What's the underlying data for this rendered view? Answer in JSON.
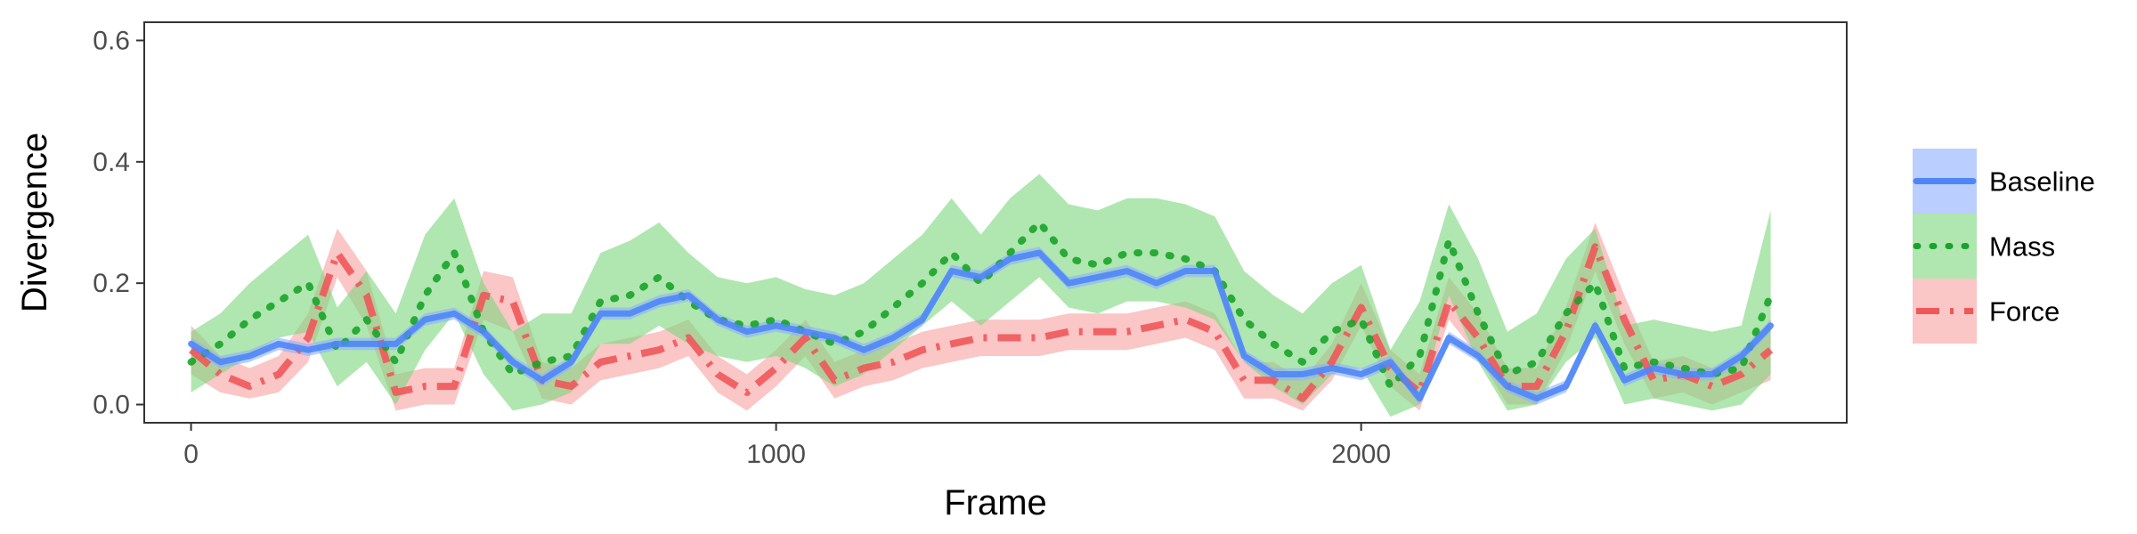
{
  "chart_data": {
    "type": "line",
    "xlabel": "Frame",
    "ylabel": "Divergence",
    "xlim": [
      -80,
      2830
    ],
    "ylim": [
      -0.03,
      0.63
    ],
    "xticks": [
      0,
      1000,
      2000
    ],
    "xtick_labels": [
      "0",
      "1000",
      "2000"
    ],
    "yticks": [
      0.0,
      0.2,
      0.4,
      0.6
    ],
    "ytick_labels": [
      "0.0",
      "0.2",
      "0.4",
      "0.6"
    ],
    "grid": false,
    "legend": "right",
    "series": [
      {
        "name": "Baseline",
        "color": "#4f86f7",
        "band_color": "#8fb0ff",
        "line_style": "solid",
        "x": [
          0,
          50,
          100,
          150,
          200,
          250,
          300,
          350,
          400,
          450,
          500,
          550,
          600,
          650,
          700,
          750,
          800,
          850,
          900,
          950,
          1000,
          1050,
          1100,
          1150,
          1200,
          1250,
          1300,
          1350,
          1400,
          1450,
          1500,
          1550,
          1600,
          1650,
          1700,
          1750,
          1800,
          1850,
          1900,
          1950,
          2000,
          2050,
          2100,
          2150,
          2200,
          2250,
          2300,
          2350,
          2400,
          2450,
          2500,
          2550,
          2600,
          2650,
          2700
        ],
        "values": [
          0.1,
          0.07,
          0.08,
          0.1,
          0.09,
          0.1,
          0.1,
          0.1,
          0.14,
          0.15,
          0.12,
          0.07,
          0.04,
          0.07,
          0.15,
          0.15,
          0.17,
          0.18,
          0.14,
          0.12,
          0.13,
          0.12,
          0.11,
          0.09,
          0.11,
          0.14,
          0.22,
          0.21,
          0.24,
          0.25,
          0.2,
          0.21,
          0.22,
          0.2,
          0.22,
          0.22,
          0.08,
          0.05,
          0.05,
          0.06,
          0.05,
          0.07,
          0.01,
          0.11,
          0.08,
          0.03,
          0.01,
          0.03,
          0.13,
          0.04,
          0.06,
          0.05,
          0.05,
          0.08,
          0.13
        ],
        "lower": [
          0.09,
          0.06,
          0.07,
          0.09,
          0.08,
          0.09,
          0.09,
          0.09,
          0.13,
          0.14,
          0.11,
          0.06,
          0.03,
          0.06,
          0.14,
          0.14,
          0.16,
          0.17,
          0.13,
          0.11,
          0.12,
          0.11,
          0.1,
          0.08,
          0.1,
          0.13,
          0.21,
          0.2,
          0.23,
          0.24,
          0.19,
          0.2,
          0.21,
          0.19,
          0.21,
          0.21,
          0.07,
          0.04,
          0.04,
          0.05,
          0.04,
          0.06,
          0.0,
          0.1,
          0.07,
          0.02,
          0.0,
          0.02,
          0.12,
          0.03,
          0.05,
          0.04,
          0.04,
          0.07,
          0.12
        ],
        "upper": [
          0.11,
          0.08,
          0.09,
          0.11,
          0.1,
          0.11,
          0.11,
          0.11,
          0.15,
          0.16,
          0.13,
          0.08,
          0.05,
          0.08,
          0.16,
          0.16,
          0.18,
          0.19,
          0.15,
          0.13,
          0.14,
          0.13,
          0.12,
          0.1,
          0.12,
          0.15,
          0.23,
          0.22,
          0.25,
          0.26,
          0.21,
          0.22,
          0.23,
          0.21,
          0.23,
          0.23,
          0.09,
          0.06,
          0.06,
          0.07,
          0.06,
          0.08,
          0.02,
          0.12,
          0.09,
          0.04,
          0.02,
          0.04,
          0.14,
          0.05,
          0.07,
          0.06,
          0.06,
          0.09,
          0.14
        ]
      },
      {
        "name": "Mass",
        "color": "#1aa32a",
        "band_color": "#7fd67f",
        "line_style": "dotted",
        "x": [
          0,
          50,
          100,
          150,
          200,
          250,
          300,
          350,
          400,
          450,
          500,
          550,
          600,
          650,
          700,
          750,
          800,
          850,
          900,
          950,
          1000,
          1050,
          1100,
          1150,
          1200,
          1250,
          1300,
          1350,
          1400,
          1450,
          1500,
          1550,
          1600,
          1650,
          1700,
          1750,
          1800,
          1850,
          1900,
          1950,
          2000,
          2050,
          2100,
          2150,
          2200,
          2250,
          2300,
          2350,
          2400,
          2450,
          2500,
          2550,
          2600,
          2650,
          2700
        ],
        "values": [
          0.07,
          0.1,
          0.14,
          0.17,
          0.2,
          0.09,
          0.14,
          0.07,
          0.18,
          0.25,
          0.12,
          0.05,
          0.07,
          0.08,
          0.17,
          0.18,
          0.21,
          0.17,
          0.14,
          0.13,
          0.14,
          0.12,
          0.1,
          0.12,
          0.16,
          0.2,
          0.25,
          0.2,
          0.25,
          0.3,
          0.24,
          0.23,
          0.25,
          0.25,
          0.24,
          0.22,
          0.14,
          0.1,
          0.07,
          0.12,
          0.14,
          0.03,
          0.08,
          0.27,
          0.15,
          0.05,
          0.07,
          0.15,
          0.2,
          0.06,
          0.07,
          0.06,
          0.05,
          0.06,
          0.18
        ],
        "lower": [
          0.02,
          0.05,
          0.08,
          0.11,
          0.12,
          0.03,
          0.07,
          0.0,
          0.09,
          0.15,
          0.05,
          -0.01,
          0.0,
          0.02,
          0.1,
          0.1,
          0.13,
          0.1,
          0.08,
          0.07,
          0.08,
          0.06,
          0.03,
          0.05,
          0.09,
          0.13,
          0.17,
          0.13,
          0.17,
          0.21,
          0.16,
          0.15,
          0.17,
          0.17,
          0.16,
          0.14,
          0.07,
          0.03,
          0.0,
          0.05,
          0.06,
          -0.02,
          0.0,
          0.18,
          0.07,
          -0.01,
          0.0,
          0.07,
          0.11,
          0.0,
          0.01,
          0.0,
          -0.01,
          0.0,
          0.05
        ],
        "upper": [
          0.12,
          0.15,
          0.2,
          0.24,
          0.28,
          0.16,
          0.22,
          0.15,
          0.28,
          0.34,
          0.2,
          0.12,
          0.15,
          0.15,
          0.25,
          0.27,
          0.3,
          0.25,
          0.21,
          0.2,
          0.21,
          0.19,
          0.18,
          0.2,
          0.24,
          0.28,
          0.34,
          0.28,
          0.34,
          0.38,
          0.33,
          0.32,
          0.34,
          0.34,
          0.33,
          0.31,
          0.22,
          0.18,
          0.15,
          0.2,
          0.23,
          0.09,
          0.17,
          0.33,
          0.24,
          0.12,
          0.15,
          0.24,
          0.29,
          0.13,
          0.14,
          0.13,
          0.12,
          0.13,
          0.32
        ]
      },
      {
        "name": "Force",
        "color": "#f0575a",
        "band_color": "#f7a3a3",
        "line_style": "dashdot",
        "x": [
          0,
          50,
          100,
          150,
          200,
          250,
          300,
          350,
          400,
          450,
          500,
          550,
          600,
          650,
          700,
          750,
          800,
          850,
          900,
          950,
          1000,
          1050,
          1100,
          1150,
          1200,
          1250,
          1300,
          1350,
          1400,
          1450,
          1500,
          1550,
          1600,
          1650,
          1700,
          1750,
          1800,
          1850,
          1900,
          1950,
          2000,
          2050,
          2100,
          2150,
          2200,
          2250,
          2300,
          2350,
          2400,
          2450,
          2500,
          2550,
          2600,
          2650,
          2700
        ],
        "values": [
          0.09,
          0.05,
          0.03,
          0.05,
          0.11,
          0.25,
          0.18,
          0.02,
          0.03,
          0.03,
          0.18,
          0.17,
          0.04,
          0.03,
          0.07,
          0.08,
          0.09,
          0.11,
          0.05,
          0.02,
          0.06,
          0.11,
          0.04,
          0.06,
          0.07,
          0.09,
          0.1,
          0.11,
          0.11,
          0.11,
          0.12,
          0.12,
          0.12,
          0.13,
          0.14,
          0.12,
          0.04,
          0.04,
          0.01,
          0.07,
          0.16,
          0.06,
          0.02,
          0.17,
          0.11,
          0.03,
          0.03,
          0.12,
          0.26,
          0.14,
          0.04,
          0.05,
          0.03,
          0.05,
          0.09
        ],
        "lower": [
          0.05,
          0.02,
          0.01,
          0.02,
          0.07,
          0.21,
          0.13,
          -0.01,
          0.0,
          0.0,
          0.14,
          0.12,
          0.01,
          0.0,
          0.04,
          0.05,
          0.06,
          0.08,
          0.02,
          -0.01,
          0.03,
          0.08,
          0.01,
          0.03,
          0.04,
          0.06,
          0.07,
          0.08,
          0.08,
          0.08,
          0.09,
          0.09,
          0.09,
          0.1,
          0.11,
          0.09,
          0.01,
          0.01,
          -0.01,
          0.04,
          0.13,
          0.03,
          -0.01,
          0.14,
          0.08,
          0.0,
          0.0,
          0.09,
          0.22,
          0.1,
          0.01,
          0.02,
          0.0,
          0.02,
          0.04
        ],
        "upper": [
          0.13,
          0.08,
          0.06,
          0.08,
          0.15,
          0.29,
          0.22,
          0.05,
          0.06,
          0.06,
          0.22,
          0.21,
          0.07,
          0.06,
          0.1,
          0.11,
          0.12,
          0.14,
          0.08,
          0.05,
          0.09,
          0.14,
          0.07,
          0.09,
          0.1,
          0.12,
          0.13,
          0.14,
          0.14,
          0.14,
          0.15,
          0.15,
          0.15,
          0.16,
          0.17,
          0.15,
          0.07,
          0.07,
          0.04,
          0.1,
          0.2,
          0.09,
          0.05,
          0.21,
          0.15,
          0.06,
          0.06,
          0.16,
          0.3,
          0.18,
          0.07,
          0.08,
          0.06,
          0.08,
          0.14
        ]
      }
    ]
  }
}
